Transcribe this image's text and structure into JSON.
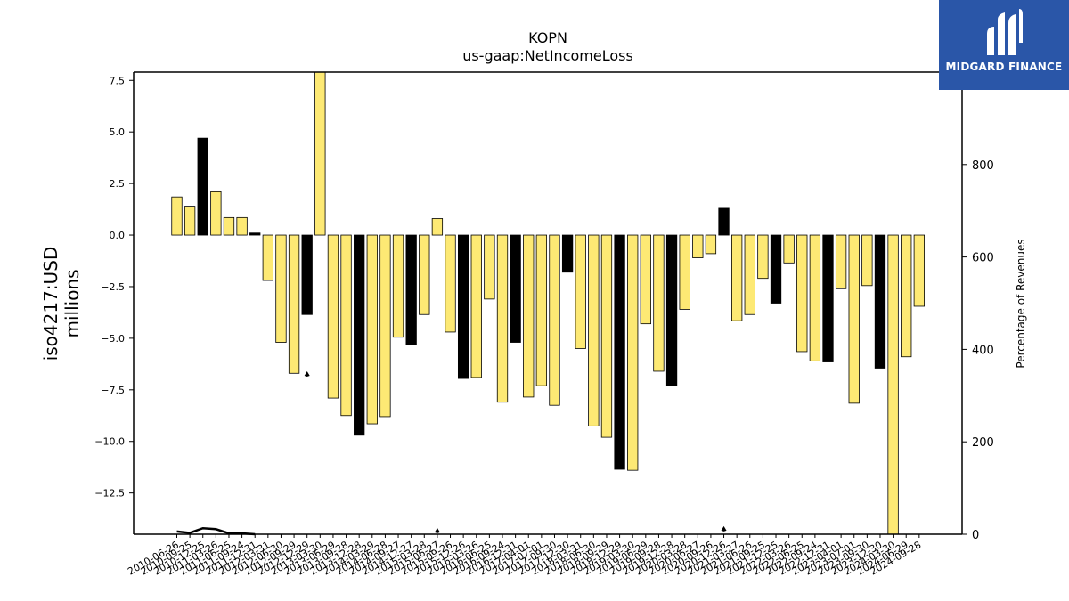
{
  "chart_data": {
    "type": "bar",
    "title": "KOPN",
    "subtitle": "us-gaap:NetIncomeLoss",
    "ylabel": "iso4217:USD\nmillions",
    "y2label": "Percentage of Revenues",
    "ylim": [
      -14.5,
      7.9
    ],
    "y2lim": [
      0,
      1000
    ],
    "yticks": [
      7.5,
      5.0,
      2.5,
      0.0,
      -2.5,
      -5.0,
      -7.5,
      -10.0,
      -12.5
    ],
    "y2ticks": [
      0,
      200,
      400,
      600,
      800
    ],
    "grid": false,
    "colors": {
      "bar_normal": "#fde974",
      "bar_highlight": "#000000",
      "line": "#000000"
    },
    "categories": [
      "2010-06-26",
      "2010-09-25",
      "2010-12-25",
      "2011-03-26",
      "2011-06-25",
      "2011-09-24",
      "2011-12-31",
      "2012-03-31",
      "2012-06-30",
      "2012-09-29",
      "2012-12-29",
      "2013-03-30",
      "2013-06-29",
      "2013-09-28",
      "2013-12-28",
      "2014-03-29",
      "2014-06-28",
      "2014-09-27",
      "2014-12-27",
      "2015-03-28",
      "2015-06-27",
      "2015-09-26",
      "2015-12-26",
      "2016-03-26",
      "2016-06-25",
      "2016-09-24",
      "2016-12-31",
      "2017-04-01",
      "2017-07-01",
      "2017-09-30",
      "2017-12-30",
      "2018-03-31",
      "2018-06-30",
      "2018-09-29",
      "2018-12-29",
      "2019-03-30",
      "2019-06-29",
      "2019-09-28",
      "2019-12-28",
      "2020-03-28",
      "2020-06-27",
      "2020-09-26",
      "2020-12-26",
      "2021-03-27",
      "2021-06-26",
      "2021-09-25",
      "2021-12-25",
      "2022-03-26",
      "2022-06-25",
      "2022-09-24",
      "2022-12-31",
      "2023-04-01",
      "2023-07-01",
      "2023-09-30",
      "2023-12-30",
      "2024-03-30",
      "2024-06-29",
      "2024-09-28"
    ],
    "values": [
      1.85,
      1.4,
      4.7,
      2.1,
      0.85,
      0.85,
      0.1,
      -2.2,
      -5.2,
      -6.7,
      -3.85,
      7.9,
      -7.9,
      -8.75,
      -9.7,
      -9.15,
      -8.8,
      -4.95,
      -5.3,
      -3.85,
      0.8,
      -4.7,
      -6.95,
      -6.9,
      -3.1,
      -8.1,
      -5.2,
      -7.85,
      -7.3,
      -8.25,
      -1.8,
      -5.5,
      -9.25,
      -9.8,
      -11.35,
      -11.4,
      -4.3,
      -6.6,
      -7.3,
      -3.6,
      -1.1,
      -0.9,
      1.3,
      -4.15,
      -3.85,
      -2.1,
      -3.3,
      -1.35,
      -5.65,
      -6.1,
      -6.15,
      -2.6,
      -8.15,
      -2.45,
      -6.45,
      -14.5,
      -5.9,
      -3.45
    ],
    "highlight": [
      false,
      false,
      true,
      false,
      false,
      false,
      true,
      false,
      false,
      false,
      true,
      false,
      false,
      false,
      true,
      false,
      false,
      false,
      true,
      false,
      false,
      false,
      true,
      false,
      false,
      false,
      true,
      false,
      false,
      false,
      true,
      false,
      false,
      false,
      true,
      false,
      false,
      false,
      true,
      false,
      false,
      false,
      true,
      false,
      false,
      false,
      true,
      false,
      false,
      false,
      true,
      false,
      false,
      false,
      true,
      false,
      false,
      false
    ],
    "line_series": {
      "name": "Percentage of Revenues",
      "values": [
        6,
        3,
        13,
        11,
        2,
        2,
        0,
        null,
        null,
        null,
        343,
        null,
        null,
        null,
        null,
        null,
        null,
        null,
        null,
        null,
        4,
        null,
        null,
        null,
        null,
        null,
        null,
        null,
        null,
        null,
        null,
        null,
        null,
        null,
        null,
        null,
        null,
        null,
        null,
        null,
        null,
        null,
        8,
        null,
        null,
        null,
        null,
        null,
        null,
        null,
        null,
        null,
        null,
        null,
        null,
        null,
        null,
        null
      ]
    }
  },
  "logo": {
    "text": "MIDGARD FINANCE",
    "bg_color": "#2a56a8"
  }
}
